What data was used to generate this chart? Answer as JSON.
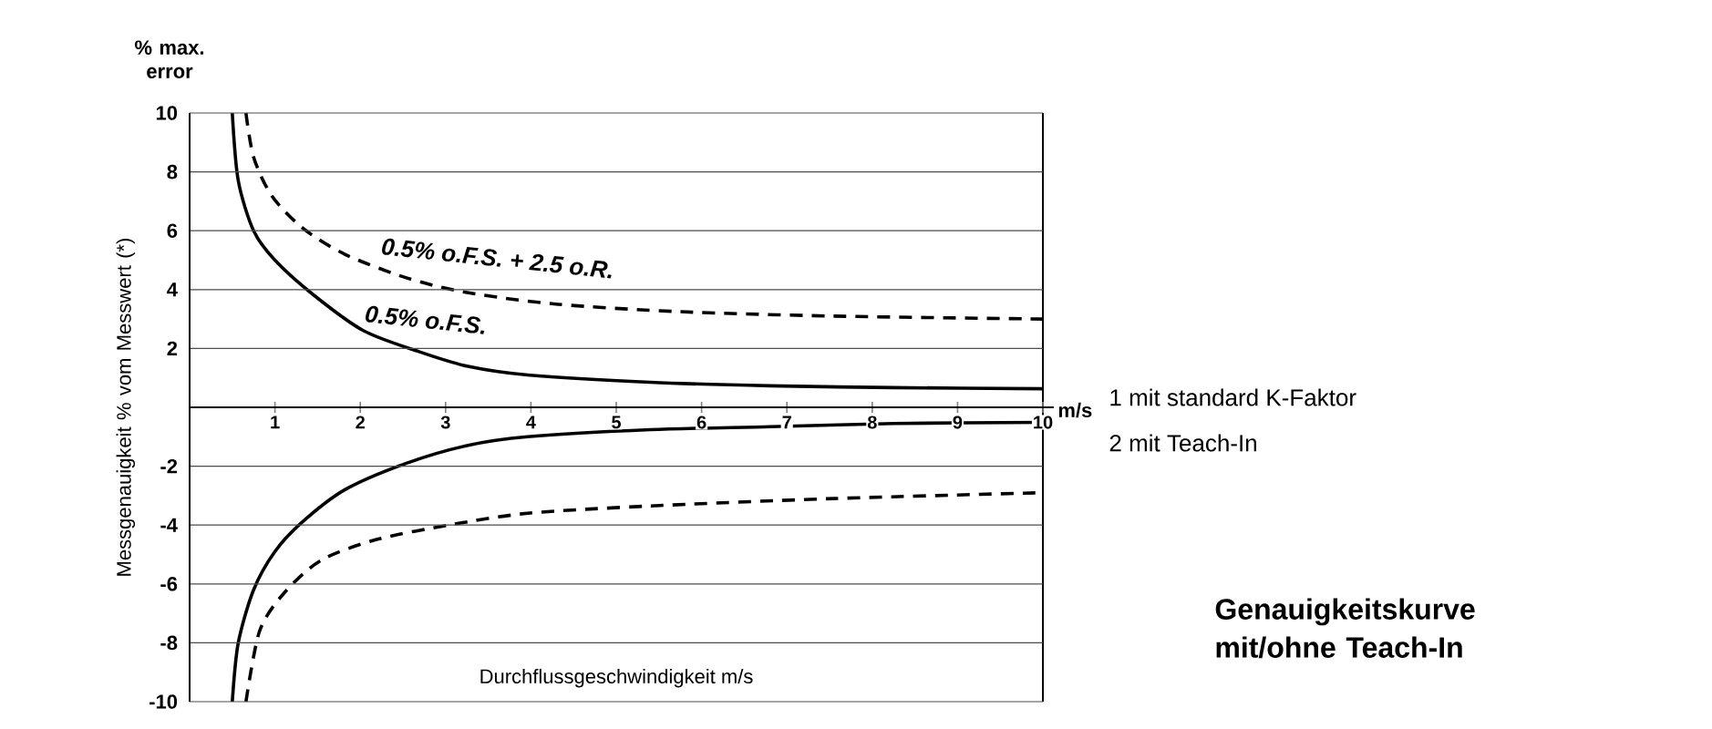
{
  "chart_data": {
    "type": "line",
    "title": "Genauigkeitskurve mit/ohne Teach-In",
    "xlabel": "Durchflussgeschwindigkeit m/s",
    "ylabel": "Messgenauigkeit % vom Messwert (*)",
    "annotations": [
      "% max. error",
      "m/s",
      "1  mit standard K-Faktor",
      "2  mit Teach-In",
      "0.5% o.F.S. + 2.5 o.R.",
      "0.5% o.F.S."
    ],
    "xlim": [
      0,
      10
    ],
    "xticks": [
      1,
      2,
      3,
      4,
      5,
      6,
      7,
      8,
      9,
      10
    ],
    "ylim": [
      -10,
      10
    ],
    "yticks": [
      -10,
      -8,
      -6,
      -4,
      -2,
      2,
      4,
      6,
      8,
      10
    ],
    "grid": "y",
    "marker": "none",
    "series": [
      {
        "color": "#000000",
        "line_style": "solid",
        "x": [
          0.5,
          0.57,
          0.75,
          1.0,
          1.46,
          2.04,
          2.68,
          3.25,
          3.96,
          5.4,
          6.8,
          8.25,
          10
        ],
        "values": [
          10,
          7.7,
          6.0,
          5.0,
          3.8,
          2.6,
          1.9,
          1.4,
          1.1,
          0.85,
          0.73,
          0.67,
          0.63
        ]
      },
      {
        "color": "#000000",
        "line_style": "dashed",
        "x": [
          0.66,
          0.75,
          0.96,
          1.32,
          1.82,
          2.54,
          3.25,
          4.32,
          5.75,
          7.54,
          10
        ],
        "values": [
          10,
          8.5,
          7.2,
          6.1,
          5.2,
          4.4,
          3.9,
          3.5,
          3.25,
          3.1,
          3.0
        ]
      },
      {
        "color": "#000000",
        "line_style": "solid",
        "x": [
          0.5,
          0.57,
          0.75,
          1.0,
          1.32,
          1.82,
          2.54,
          3.25,
          3.96,
          5.4,
          6.8,
          8.25,
          10
        ],
        "values": [
          -10,
          -8.0,
          -6.2,
          -4.9,
          -3.9,
          -2.8,
          -1.9,
          -1.3,
          -1.0,
          -0.76,
          -0.66,
          -0.55,
          -0.51
        ]
      },
      {
        "color": "#000000",
        "line_style": "dashed",
        "x": [
          0.66,
          0.82,
          1.11,
          1.54,
          2.18,
          3.04,
          3.96,
          5.4,
          7.54,
          10
        ],
        "values": [
          -10,
          -7.6,
          -6.3,
          -5.2,
          -4.5,
          -4.0,
          -3.6,
          -3.35,
          -3.1,
          -2.9
        ]
      }
    ]
  }
}
